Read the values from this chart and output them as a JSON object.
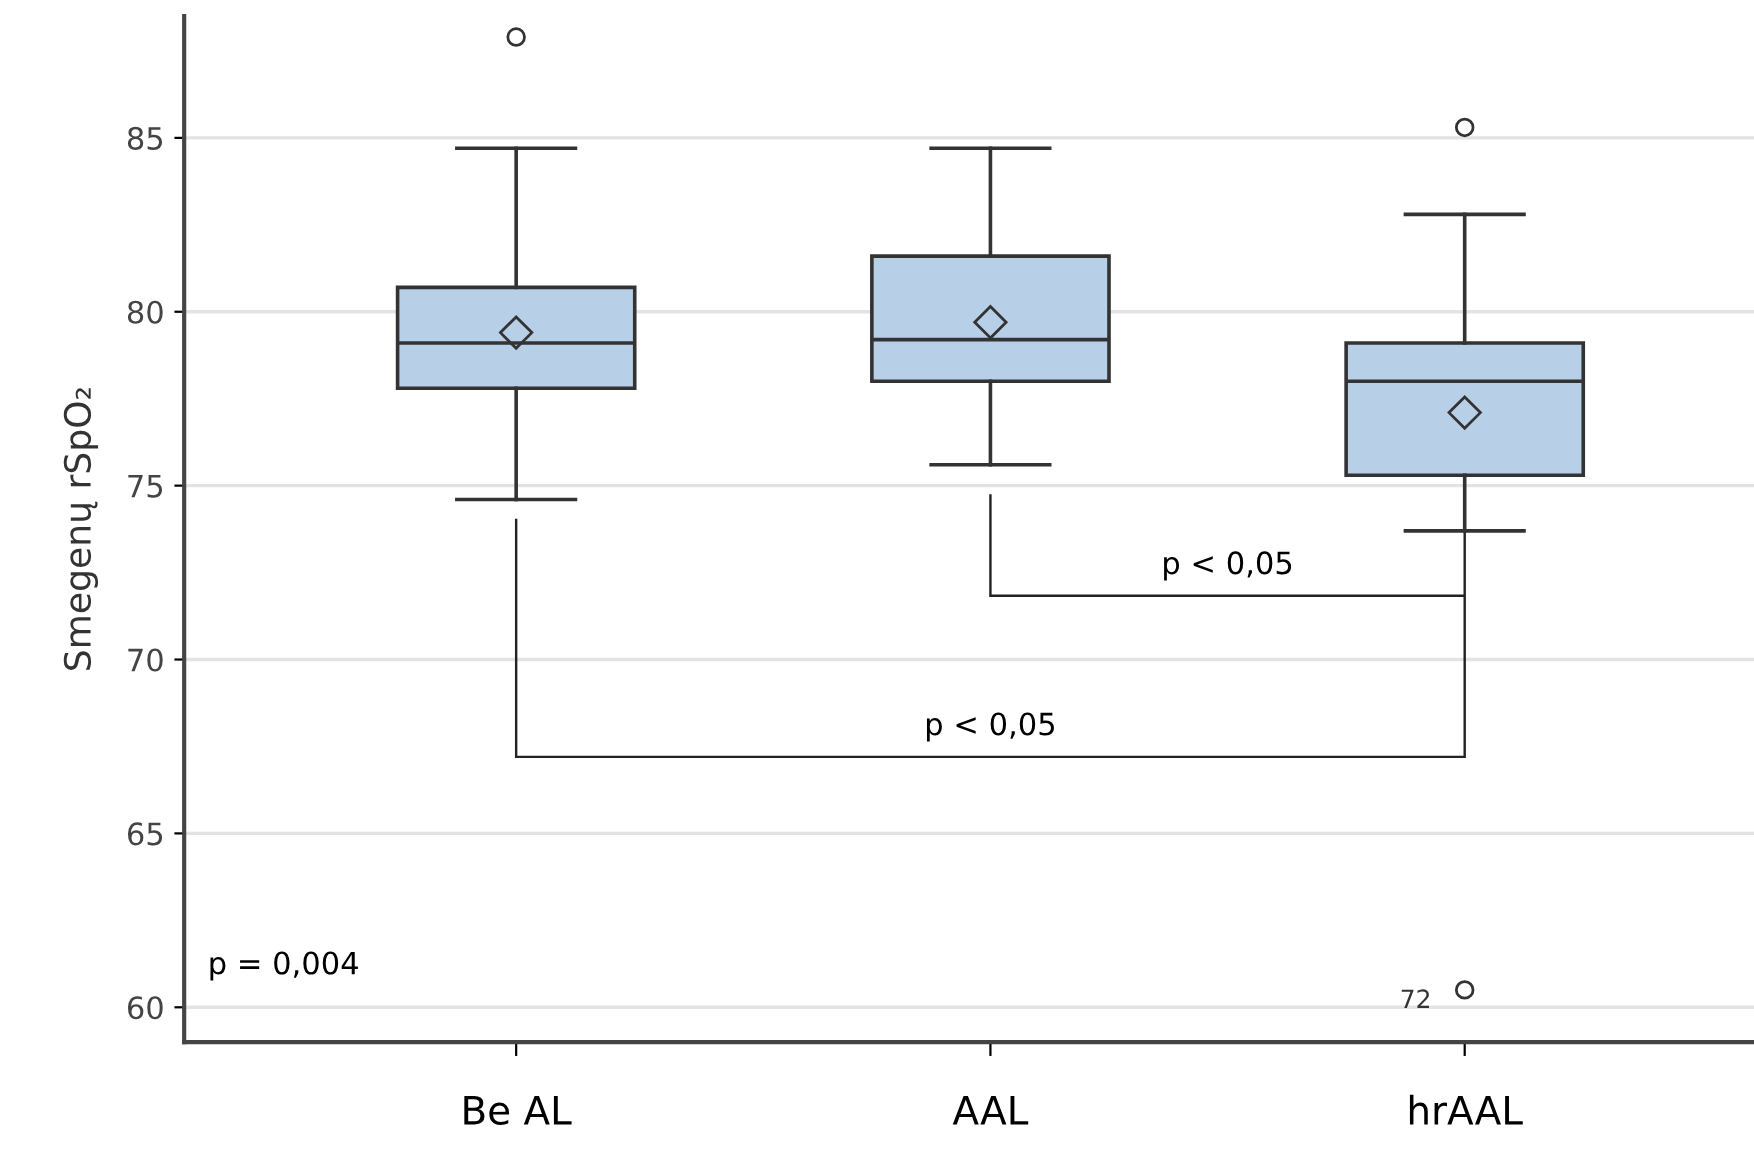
{
  "chart_data": {
    "type": "box",
    "ylabel": "Smegenų rSpO₂",
    "categories": [
      "Be AL",
      "AAL",
      "hrAAL"
    ],
    "color": "#b8cfe8",
    "boxes": [
      {
        "low": 74.6,
        "q1": 77.8,
        "median": 79.1,
        "q3": 80.7,
        "high": 84.7,
        "mean": 79.4,
        "outliers": [
          87.9
        ]
      },
      {
        "low": 75.6,
        "q1": 78.0,
        "median": 79.2,
        "q3": 81.6,
        "high": 84.7,
        "mean": 79.7
      },
      {
        "low": 73.7,
        "q1": 75.3,
        "median": 78.0,
        "q3": 79.1,
        "high": 82.8,
        "mean": 77.1,
        "outliers": [
          85.3,
          60.5
        ]
      }
    ],
    "ylim": [
      59,
      88.5
    ],
    "yticks": [
      60,
      65,
      70,
      75,
      80,
      85
    ],
    "grid": "y",
    "annotations": [
      "p = 0,004",
      "p < 0,05",
      "p < 0,05",
      "72"
    ]
  }
}
